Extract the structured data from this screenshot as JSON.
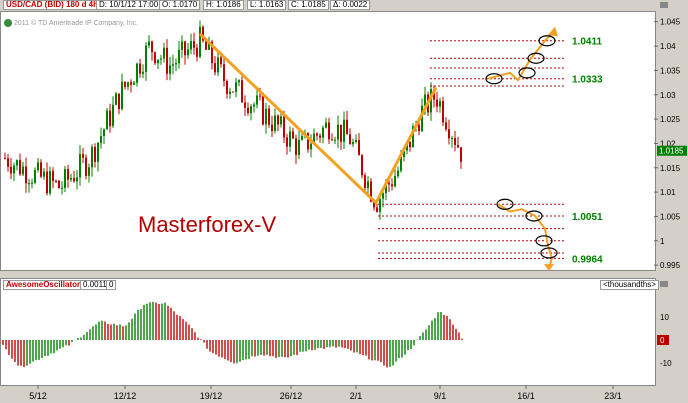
{
  "header": {
    "symbol": "USD/CAD (BID) 180 d 4h",
    "date": "D: 10/1/12 17:00",
    "open": "O: 1.0170",
    "high": "H: 1.0186",
    "low": "L: 1.0163",
    "close": "C: 1.0185",
    "change": "Δ: 0.0022"
  },
  "copyright": "2011 © TD Ameritrade IP Company, Inc.",
  "watermark": "Masterforex-V",
  "price_axis_ticks": [
    "1.045",
    "1.04",
    "1.035",
    "1.03",
    "1.025",
    "1.02",
    "1.015",
    "1.01",
    "1.005",
    "1",
    "0.995"
  ],
  "current_price_label": "1.0185",
  "osc": {
    "name": "AwesomeOscillator",
    "value": "0.0011",
    "extra": "0",
    "units": "<thousandths>",
    "ticks": [
      "10",
      "0",
      "-10"
    ],
    "zero_marker": "0"
  },
  "x_axis_labels": [
    "5/12",
    "12/12",
    "19/12",
    "26/12",
    "2/1",
    "9/1",
    "16/1",
    "23/1"
  ],
  "level_labels": [
    "1.0411",
    "1.0333",
    "1.0051",
    "0.9964"
  ],
  "colors": {
    "up": "#008000",
    "down": "#c00000",
    "trend": "#f5a020",
    "level": "#c00000",
    "label": "#008000"
  },
  "chart_data": {
    "type": "candlestick",
    "title": "USD/CAD (BID) 180 d 4h",
    "ylim": [
      0.994,
      1.047
    ],
    "trend_points": [
      {
        "x": "18/12",
        "y": 1.0425
      },
      {
        "x": "3/1",
        "y": 1.0078
      },
      {
        "x": "8/1",
        "y": 1.0315
      }
    ],
    "levels": [
      1.0411,
      1.0375,
      1.0355,
      1.0333,
      1.0318,
      1.0075,
      1.0051,
      1.0025,
      1.0,
      0.9975,
      0.9964
    ],
    "labeled_levels": [
      1.0411,
      1.0333,
      1.0051,
      0.9964
    ],
    "last_close": 1.0185
  }
}
